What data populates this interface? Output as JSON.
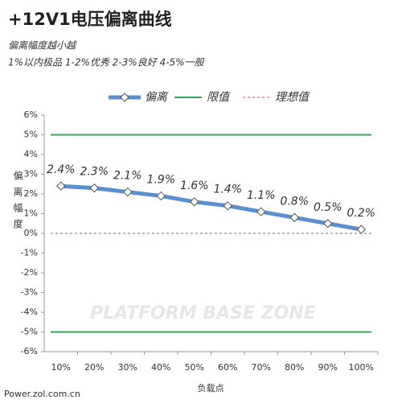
{
  "chart_data": {
    "type": "line",
    "title": "+12V1电压偏离曲线",
    "subtitle": [
      "偏离幅度越小越",
      "1%以内极品 1-2%优秀 2-3%良好 4-5%一般"
    ],
    "x_label": "负载点",
    "y_label": "偏离幅度",
    "source": "Power.zol.com.cn",
    "watermark": "PLATFORM BASE ZONE",
    "categories": [
      "10%",
      "20%",
      "30%",
      "40%",
      "50%",
      "60%",
      "70%",
      "80%",
      "90%",
      "100%"
    ],
    "series": [
      {
        "name": "偏离",
        "color": "#5b8fd0",
        "values": [
          2.4,
          2.3,
          2.1,
          1.9,
          1.6,
          1.4,
          1.1,
          0.8,
          0.5,
          0.2
        ],
        "value_labels": [
          "2.4%",
          "2.3%",
          "2.1%",
          "1.9%",
          "1.6%",
          "1.4%",
          "1.1%",
          "0.8%",
          "0.5%",
          "0.2%"
        ]
      }
    ],
    "reference_lines": [
      {
        "name": "限值",
        "color": "#3aa35a",
        "values": [
          5,
          -5
        ]
      },
      {
        "name": "理想值",
        "color": "#c0504d",
        "values": [
          0
        ],
        "dashed": true
      }
    ],
    "ylim": [
      -6,
      6
    ],
    "yticks": [
      {
        "value": -6,
        "label": "-6%"
      },
      {
        "value": -5,
        "label": "-5%"
      },
      {
        "value": -4,
        "label": "-4%"
      },
      {
        "value": -3,
        "label": "-3%"
      },
      {
        "value": -2,
        "label": "-2%"
      },
      {
        "value": -1,
        "label": "-1%"
      },
      {
        "value": 0,
        "label": "0%"
      },
      {
        "value": 1,
        "label": "1%"
      },
      {
        "value": 2,
        "label": "2%"
      },
      {
        "value": 3,
        "label": "3%"
      },
      {
        "value": 4,
        "label": "4%"
      },
      {
        "value": 5,
        "label": "5%"
      },
      {
        "value": 6,
        "label": "6%"
      }
    ]
  }
}
